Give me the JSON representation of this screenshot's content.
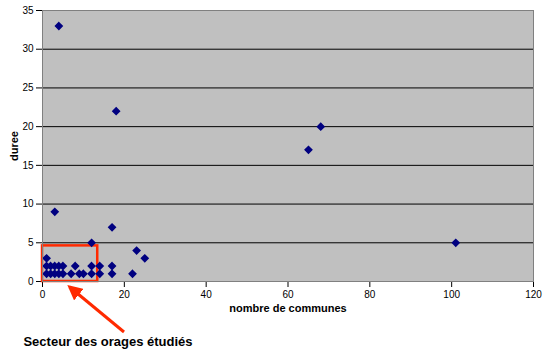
{
  "chart_data": {
    "type": "scatter",
    "x_label": "nombre de communes",
    "y_label": "duree",
    "x": [
      4,
      3,
      18,
      68,
      65,
      101,
      17,
      12,
      23,
      25,
      22,
      17,
      17,
      1,
      1,
      1,
      2,
      2,
      3,
      3,
      4,
      4,
      5,
      5,
      7,
      8,
      9,
      10,
      12,
      12,
      14,
      14
    ],
    "values": [
      33,
      9,
      22,
      20,
      17,
      5,
      7,
      5,
      4,
      3,
      1,
      2,
      1,
      3,
      2,
      1,
      1,
      2,
      1,
      2,
      1,
      2,
      1,
      2,
      1,
      2,
      1,
      1,
      1,
      2,
      1,
      2
    ],
    "color": "#000080",
    "marker": "diamond",
    "xlim": [
      0,
      120
    ],
    "xticks": [
      0,
      20,
      40,
      60,
      80,
      100,
      120
    ],
    "ylim": [
      0,
      35
    ],
    "yticks": [
      0,
      5,
      10,
      15,
      20,
      25,
      30,
      35
    ],
    "grid": "y",
    "annotations": [
      {
        "text": "Secteur des orages étudiés",
        "x": [
          0,
          13.5
        ],
        "y": [
          0,
          4.6
        ],
        "color": "#ff2a00"
      }
    ]
  }
}
